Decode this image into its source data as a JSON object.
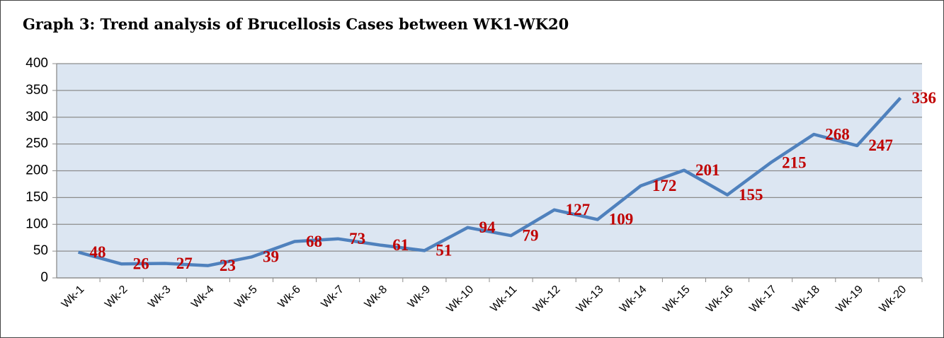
{
  "chart_data": {
    "type": "line",
    "title": "Graph 3: Trend analysis of Brucellosis Cases between WK1-WK20",
    "categories": [
      "Wk-1",
      "Wk-2",
      "Wk-3",
      "Wk-4",
      "Wk-5",
      "Wk-6",
      "Wk-7",
      "Wk-8",
      "Wk-9",
      "Wk-10",
      "Wk-11",
      "Wk-12",
      "Wk-13",
      "Wk-14",
      "Wk-15",
      "Wk-16",
      "Wk-17",
      "Wk-18",
      "Wk-19",
      "Wk-20"
    ],
    "series": [
      {
        "name": "Brucellosis Cases",
        "color": "#4f81bd",
        "values": [
          48,
          26,
          27,
          23,
          39,
          68,
          73,
          61,
          51,
          94,
          79,
          127,
          109,
          172,
          201,
          155,
          215,
          268,
          247,
          336
        ]
      }
    ],
    "ylim": [
      0,
      400
    ],
    "yticks": [
      0,
      50,
      100,
      150,
      200,
      250,
      300,
      350,
      400
    ],
    "grid": true,
    "label_color": "#c00000",
    "plot_background": "#dce6f2"
  }
}
